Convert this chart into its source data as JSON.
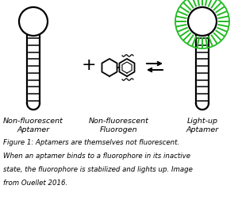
{
  "caption_lines": [
    "Figure 1: Aptamers are themselves not fluorescent.",
    "When an aptamer binds to a fluorophore in its inactive",
    "state, the fluorophore is stabilized and lights up. Image",
    "from Ouellet 2016."
  ],
  "label_aptamer": "Non-fluorescent\nAptamer",
  "label_fluorogen": "Non-fluorescent\nFluorogen",
  "label_lightup": "Light-up\nAptamer",
  "bg_color": "#ffffff",
  "line_color": "#000000",
  "green_color": "#22bb22"
}
